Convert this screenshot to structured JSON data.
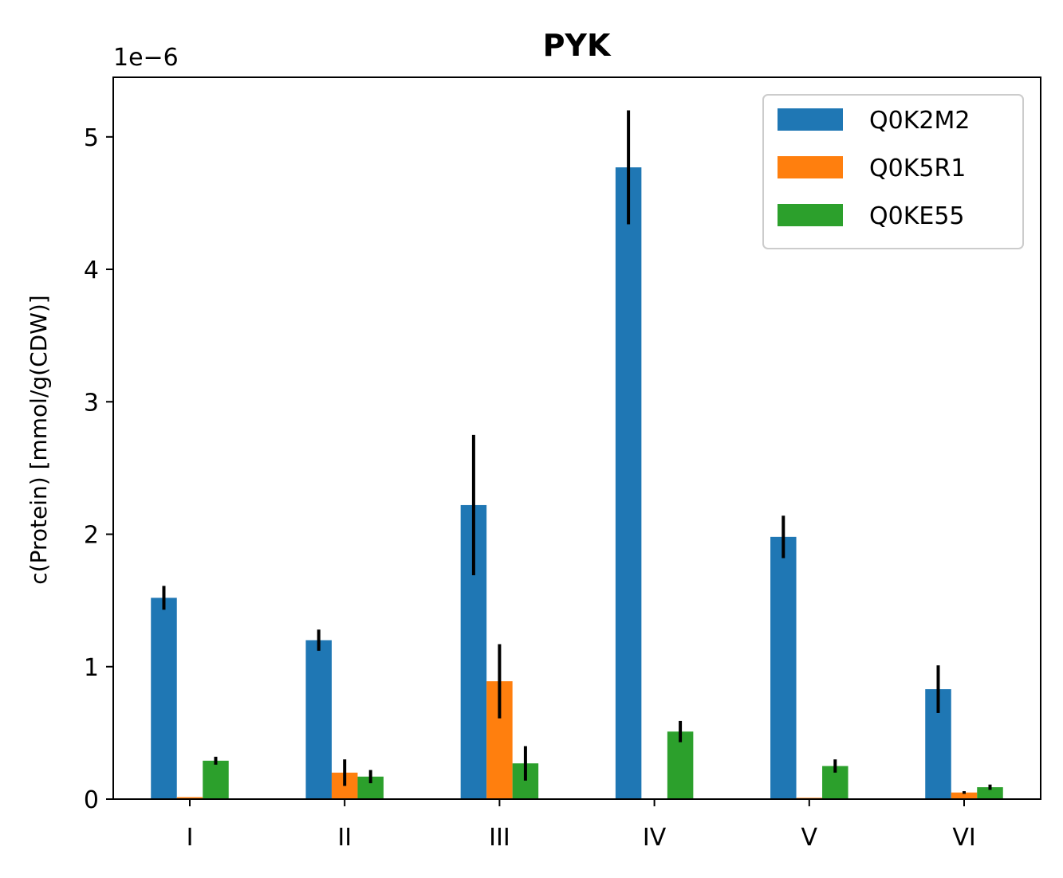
{
  "chart_data": {
    "type": "bar",
    "title": "PYK",
    "xlabel": "",
    "ylabel": "c(Protein) [mmol/g(CDW)]",
    "y_offset_label": "1e−6",
    "categories": [
      "I",
      "II",
      "III",
      "IV",
      "V",
      "VI"
    ],
    "y_ticks": [
      "0",
      "1",
      "2",
      "3",
      "4",
      "5"
    ],
    "ylim": [
      0,
      5.45
    ],
    "ylim_scale": 1e-06,
    "legend_position": "top-right",
    "series": [
      {
        "name": "Q0K2M2",
        "color": "#1f77b4",
        "values": [
          1.52,
          1.2,
          2.22,
          4.77,
          1.98,
          0.83
        ],
        "errors": [
          0.09,
          0.08,
          0.53,
          0.43,
          0.16,
          0.18
        ]
      },
      {
        "name": "Q0K5R1",
        "color": "#ff7f0e",
        "values": [
          0.015,
          0.2,
          0.89,
          0.005,
          0.01,
          0.05
        ],
        "errors": [
          0.0,
          0.1,
          0.28,
          0.0,
          0.0,
          0.01
        ]
      },
      {
        "name": "Q0KE55",
        "color": "#2ca02c",
        "values": [
          0.29,
          0.17,
          0.27,
          0.51,
          0.25,
          0.09
        ],
        "errors": [
          0.03,
          0.05,
          0.13,
          0.08,
          0.05,
          0.02
        ]
      }
    ]
  }
}
